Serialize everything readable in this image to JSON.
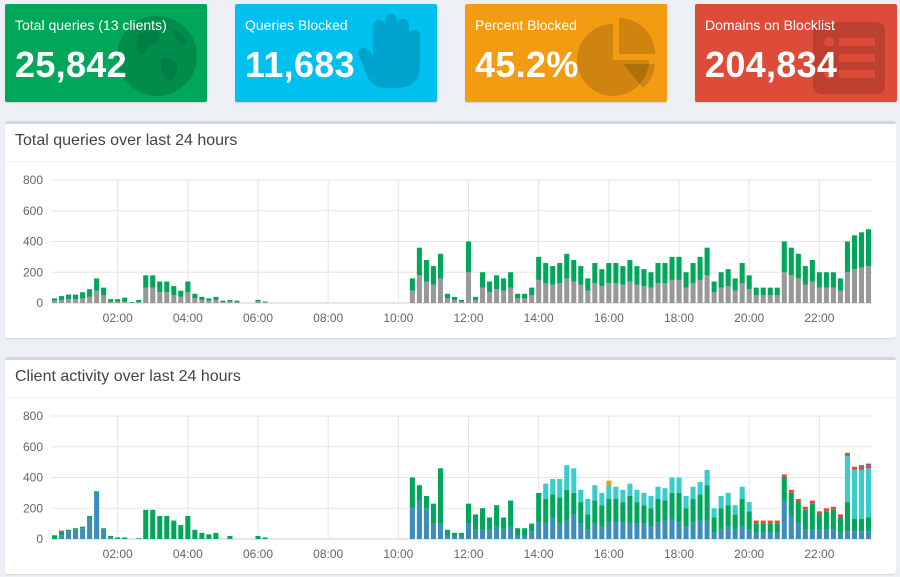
{
  "stats": {
    "total": {
      "label": "Total queries (13 clients)",
      "value": "25,842",
      "color": "#00a65a",
      "icon": "globe-icon"
    },
    "blocked": {
      "label": "Queries Blocked",
      "value": "11,683",
      "color": "#00c0ef",
      "icon": "hand-icon"
    },
    "percent": {
      "label": "Percent Blocked",
      "value": "45.2%",
      "color": "#f39c12",
      "icon": "pie-chart-icon"
    },
    "domains": {
      "label": "Domains on Blocklist",
      "value": "204,834",
      "color": "#dd4b39",
      "icon": "list-icon"
    }
  },
  "queries_chart": {
    "title": "Total queries over last 24 hours"
  },
  "clients_chart": {
    "title": "Client activity over last 24 hours"
  },
  "chart_data": [
    {
      "type": "bar",
      "title": "Total queries over last 24 hours",
      "ylim": [
        0,
        800
      ],
      "yticks": [
        "0",
        "200",
        "400",
        "600",
        "800"
      ],
      "xtick_labels": [
        "02:00",
        "04:00",
        "06:00",
        "08:00",
        "10:00",
        "12:00",
        "14:00",
        "16:00",
        "18:00",
        "20:00",
        "22:00"
      ],
      "xtick_positions": [
        9.5,
        19.5,
        29.5,
        39.5,
        49.5,
        59.5,
        69.5,
        79.5,
        89.5,
        99.5,
        109.5
      ],
      "bins": 117,
      "colors": {
        "permitted": "#00a65a",
        "blocked": "#999999"
      },
      "series": [
        {
          "key": "blocked",
          "values": [
            15,
            20,
            25,
            25,
            30,
            40,
            80,
            50,
            10,
            10,
            10,
            0,
            5,
            100,
            100,
            70,
            70,
            50,
            40,
            70,
            30,
            20,
            15,
            20,
            5,
            10,
            5,
            0,
            0,
            10,
            5,
            0,
            0,
            0,
            0,
            0,
            0,
            0,
            0,
            0,
            0,
            0,
            0,
            0,
            0,
            0,
            0,
            0,
            0,
            0,
            0,
            80,
            180,
            140,
            120,
            160,
            30,
            20,
            10,
            200,
            20,
            100,
            70,
            90,
            80,
            100,
            30,
            30,
            50,
            150,
            130,
            120,
            130,
            160,
            140,
            120,
            80,
            130,
            110,
            130,
            130,
            120,
            140,
            120,
            110,
            100,
            130,
            130,
            150,
            150,
            100,
            130,
            150,
            180,
            70,
            100,
            110,
            80,
            130,
            90,
            50,
            50,
            50,
            50,
            200,
            180,
            160,
            120,
            140,
            100,
            100,
            100,
            80,
            200,
            220,
            230,
            240
          ]
        },
        {
          "key": "permitted",
          "values": [
            15,
            25,
            30,
            30,
            40,
            50,
            80,
            50,
            15,
            15,
            25,
            5,
            15,
            80,
            80,
            70,
            70,
            60,
            40,
            70,
            30,
            20,
            15,
            20,
            10,
            10,
            10,
            0,
            0,
            10,
            5,
            0,
            0,
            0,
            0,
            0,
            0,
            0,
            0,
            0,
            0,
            0,
            0,
            0,
            0,
            0,
            0,
            0,
            0,
            0,
            0,
            80,
            180,
            140,
            120,
            160,
            30,
            20,
            10,
            200,
            20,
            100,
            70,
            90,
            80,
            100,
            30,
            30,
            50,
            150,
            130,
            120,
            130,
            160,
            140,
            120,
            80,
            130,
            110,
            130,
            130,
            120,
            140,
            120,
            110,
            100,
            130,
            130,
            150,
            150,
            100,
            130,
            150,
            180,
            70,
            100,
            110,
            80,
            130,
            90,
            50,
            50,
            50,
            50,
            200,
            180,
            160,
            120,
            140,
            100,
            100,
            100,
            80,
            200,
            220,
            230,
            240
          ]
        }
      ]
    },
    {
      "type": "bar",
      "title": "Client activity over last 24 hours",
      "ylim": [
        0,
        800
      ],
      "yticks": [
        "0",
        "200",
        "400",
        "600",
        "800"
      ],
      "xtick_labels": [
        "02:00",
        "04:00",
        "06:00",
        "08:00",
        "10:00",
        "12:00",
        "14:00",
        "16:00",
        "18:00",
        "20:00",
        "22:00"
      ],
      "xtick_positions": [
        9.5,
        19.5,
        29.5,
        39.5,
        49.5,
        59.5,
        69.5,
        79.5,
        89.5,
        99.5,
        109.5
      ],
      "bins": 117,
      "series": [
        {
          "key": "client-blue",
          "color": "#3c8dbc",
          "values": [
            0,
            25,
            50,
            60,
            70,
            140,
            300,
            60,
            10,
            0,
            0,
            0,
            0,
            0,
            0,
            0,
            0,
            0,
            0,
            0,
            0,
            0,
            0,
            0,
            0,
            0,
            0,
            0,
            0,
            0,
            0,
            0,
            0,
            0,
            0,
            0,
            0,
            0,
            0,
            0,
            0,
            0,
            0,
            0,
            0,
            0,
            0,
            0,
            0,
            0,
            0,
            200,
            250,
            200,
            100,
            100,
            20,
            20,
            20,
            100,
            60,
            60,
            60,
            80,
            60,
            80,
            20,
            20,
            50,
            110,
            100,
            140,
            100,
            120,
            160,
            100,
            60,
            100,
            80,
            110,
            110,
            110,
            100,
            100,
            100,
            80,
            110,
            120,
            130,
            110,
            80,
            110,
            120,
            120,
            40,
            60,
            80,
            60,
            80,
            60,
            40,
            40,
            40,
            40,
            250,
            150,
            100,
            60,
            60,
            60,
            60,
            60,
            40,
            50,
            50,
            50,
            50
          ]
        },
        {
          "key": "client-green",
          "color": "#00a65a",
          "values": [
            20,
            25,
            10,
            10,
            10,
            10,
            10,
            10,
            10,
            10,
            10,
            0,
            5,
            190,
            190,
            150,
            150,
            120,
            90,
            150,
            60,
            40,
            30,
            40,
            0,
            20,
            0,
            0,
            0,
            20,
            10,
            0,
            0,
            0,
            0,
            0,
            0,
            0,
            0,
            0,
            0,
            0,
            0,
            0,
            0,
            0,
            0,
            0,
            0,
            0,
            0,
            200,
            100,
            80,
            130,
            360,
            40,
            20,
            20,
            130,
            100,
            140,
            80,
            140,
            80,
            170,
            50,
            50,
            50,
            190,
            160,
            150,
            170,
            200,
            140,
            140,
            100,
            150,
            140,
            150,
            150,
            130,
            180,
            140,
            120,
            120,
            150,
            130,
            170,
            190,
            120,
            150,
            170,
            230,
            100,
            140,
            140,
            100,
            180,
            120,
            60,
            60,
            60,
            60,
            150,
            150,
            140,
            130,
            170,
            100,
            120,
            130,
            100,
            190,
            80,
            80,
            90
          ]
        },
        {
          "key": "client-cyan",
          "color": "#39cccc",
          "values": [
            0,
            0,
            0,
            0,
            0,
            0,
            0,
            0,
            0,
            0,
            0,
            0,
            0,
            0,
            0,
            0,
            0,
            0,
            0,
            0,
            0,
            0,
            0,
            0,
            0,
            0,
            0,
            0,
            0,
            0,
            0,
            0,
            0,
            0,
            0,
            0,
            0,
            0,
            0,
            0,
            0,
            0,
            0,
            0,
            0,
            0,
            0,
            0,
            0,
            0,
            0,
            0,
            0,
            0,
            0,
            0,
            0,
            0,
            0,
            0,
            0,
            0,
            0,
            0,
            0,
            0,
            0,
            0,
            0,
            0,
            100,
            100,
            120,
            160,
            160,
            80,
            100,
            100,
            80,
            90,
            80,
            80,
            80,
            80,
            80,
            80,
            80,
            80,
            100,
            100,
            80,
            80,
            80,
            100,
            60,
            80,
            80,
            60,
            80,
            60,
            0,
            0,
            0,
            0,
            0,
            0,
            0,
            0,
            0,
            0,
            0,
            0,
            0,
            300,
            320,
            320,
            320
          ]
        },
        {
          "key": "client-red",
          "color": "#dd4b39",
          "values": [
            5,
            5,
            0,
            0,
            0,
            0,
            0,
            0,
            0,
            0,
            0,
            0,
            0,
            0,
            0,
            0,
            0,
            0,
            0,
            0,
            0,
            0,
            0,
            0,
            0,
            0,
            0,
            0,
            0,
            0,
            0,
            0,
            0,
            0,
            0,
            0,
            0,
            0,
            0,
            0,
            0,
            0,
            0,
            0,
            0,
            0,
            0,
            0,
            0,
            0,
            0,
            0,
            0,
            0,
            0,
            0,
            0,
            0,
            0,
            0,
            0,
            0,
            0,
            0,
            0,
            0,
            0,
            0,
            0,
            0,
            0,
            0,
            0,
            0,
            0,
            0,
            0,
            0,
            0,
            0,
            0,
            0,
            0,
            0,
            0,
            0,
            0,
            0,
            0,
            0,
            0,
            0,
            0,
            0,
            0,
            0,
            0,
            0,
            0,
            0,
            20,
            20,
            20,
            20,
            20,
            20,
            20,
            20,
            20,
            20,
            20,
            20,
            20,
            20,
            20,
            20,
            20
          ]
        },
        {
          "key": "client-orange",
          "color": "#f39c12",
          "values": [
            0,
            0,
            0,
            0,
            0,
            0,
            0,
            0,
            0,
            0,
            0,
            0,
            0,
            0,
            0,
            0,
            0,
            0,
            0,
            0,
            0,
            0,
            0,
            0,
            0,
            0,
            0,
            0,
            0,
            0,
            0,
            0,
            0,
            0,
            0,
            0,
            0,
            0,
            0,
            0,
            0,
            0,
            0,
            0,
            0,
            0,
            0,
            0,
            0,
            0,
            0,
            0,
            0,
            0,
            0,
            0,
            0,
            0,
            0,
            0,
            0,
            0,
            0,
            0,
            0,
            0,
            0,
            0,
            0,
            0,
            0,
            0,
            0,
            0,
            0,
            0,
            0,
            0,
            0,
            30,
            0,
            0,
            0,
            0,
            0,
            0,
            0,
            0,
            0,
            0,
            0,
            0,
            0,
            0,
            0,
            0,
            0,
            0,
            0,
            0,
            0,
            0,
            0,
            0,
            0,
            0,
            0,
            0,
            0,
            0,
            0,
            0,
            0,
            0,
            0,
            0,
            0
          ]
        },
        {
          "key": "client-black",
          "color": "#222222",
          "values": [
            0,
            0,
            0,
            0,
            0,
            0,
            0,
            0,
            0,
            0,
            0,
            0,
            0,
            0,
            0,
            0,
            0,
            0,
            0,
            0,
            0,
            0,
            0,
            0,
            0,
            0,
            0,
            0,
            0,
            0,
            0,
            0,
            0,
            0,
            0,
            0,
            0,
            0,
            0,
            0,
            0,
            0,
            0,
            0,
            0,
            0,
            0,
            0,
            0,
            0,
            0,
            0,
            0,
            0,
            0,
            0,
            0,
            0,
            0,
            0,
            0,
            0,
            0,
            0,
            0,
            0,
            0,
            0,
            0,
            0,
            0,
            0,
            0,
            0,
            0,
            0,
            0,
            0,
            0,
            0,
            0,
            0,
            0,
            0,
            0,
            0,
            0,
            0,
            0,
            0,
            0,
            0,
            0,
            0,
            0,
            0,
            0,
            0,
            0,
            0,
            0,
            0,
            0,
            0,
            0,
            0,
            0,
            0,
            0,
            0,
            0,
            0,
            0,
            0,
            0,
            0,
            0
          ]
        },
        {
          "key": "client-purple",
          "color": "#605ca8",
          "values": [
            0,
            0,
            0,
            0,
            0,
            0,
            0,
            0,
            0,
            0,
            0,
            0,
            0,
            0,
            0,
            0,
            0,
            0,
            0,
            0,
            0,
            0,
            0,
            0,
            0,
            0,
            0,
            0,
            0,
            0,
            0,
            0,
            0,
            0,
            0,
            0,
            0,
            0,
            0,
            0,
            0,
            0,
            0,
            0,
            0,
            0,
            0,
            0,
            0,
            0,
            0,
            0,
            0,
            0,
            0,
            0,
            0,
            0,
            0,
            0,
            0,
            0,
            0,
            0,
            0,
            0,
            0,
            0,
            0,
            0,
            0,
            0,
            0,
            0,
            0,
            0,
            0,
            0,
            0,
            0,
            0,
            0,
            0,
            0,
            0,
            0,
            0,
            0,
            0,
            0,
            0,
            0,
            0,
            0,
            0,
            0,
            0,
            0,
            0,
            0,
            0,
            0,
            0,
            0,
            0,
            0,
            0,
            0,
            0,
            0,
            0,
            0,
            0,
            0,
            0,
            10,
            10
          ]
        }
      ]
    }
  ]
}
